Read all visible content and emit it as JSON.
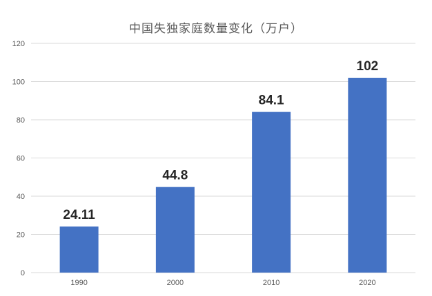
{
  "chart_data": {
    "type": "bar",
    "title": "中国失独家庭数量变化（万户）",
    "xlabel": "",
    "ylabel": "",
    "categories": [
      "1990",
      "2000",
      "2010",
      "2020"
    ],
    "values": [
      24.11,
      44.8,
      84.1,
      102
    ],
    "data_labels": [
      "24.11",
      "44.8",
      "84.1",
      "102"
    ],
    "y_ticks": [
      0,
      20,
      40,
      60,
      80,
      100,
      120
    ],
    "ylim": [
      0,
      120
    ],
    "grid": true,
    "legend": "none",
    "colors": {
      "bar": "#4472c4",
      "grid": "#d9d9d9",
      "text": "#595959",
      "label": "#262626"
    }
  }
}
